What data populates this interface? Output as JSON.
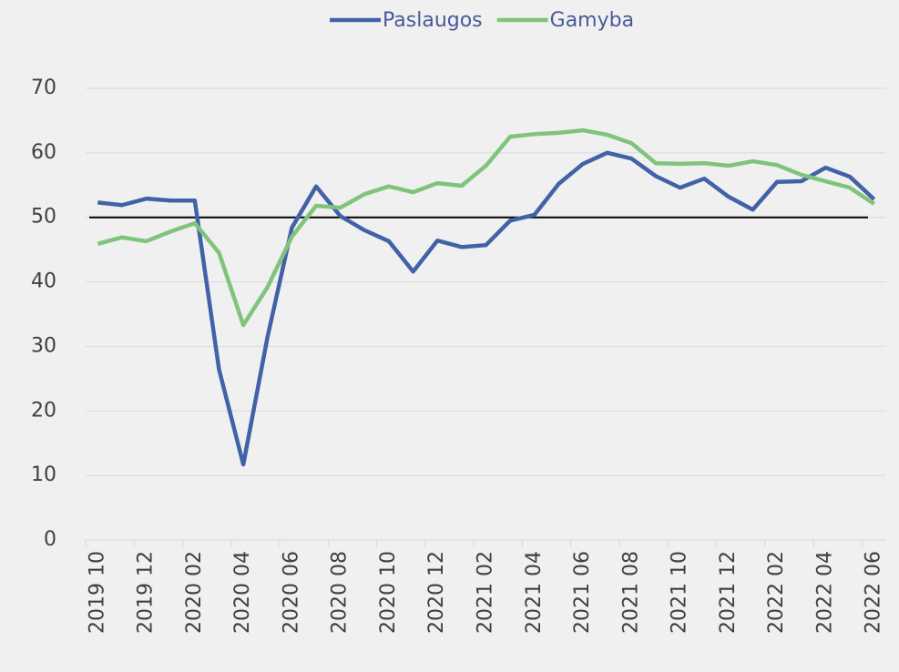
{
  "chart_data": {
    "type": "line",
    "categories": [
      "2019 10",
      null,
      "2019 12",
      null,
      "2020 02",
      null,
      "2020 04",
      null,
      "2020 06",
      null,
      "2020 08",
      null,
      "2020 10",
      null,
      "2020 12",
      null,
      "2021 02",
      null,
      "2021 04",
      null,
      "2021 06",
      null,
      "2021 08",
      null,
      "2021 10",
      null,
      "2021 12",
      null,
      "2022 02",
      null,
      "2022 04",
      null,
      "2022 06"
    ],
    "series": [
      {
        "name": "Paslaugos",
        "color": "#4262a8",
        "values": [
          52.3,
          51.9,
          52.9,
          52.6,
          52.6,
          26.4,
          11.7,
          31.5,
          48.4,
          54.8,
          50.2,
          48.0,
          46.3,
          41.6,
          46.4,
          45.4,
          45.7,
          49.5,
          50.4,
          55.2,
          58.3,
          60.0,
          59.1,
          56.4,
          54.6,
          56.0,
          53.2,
          51.2,
          55.5,
          55.6,
          57.7,
          56.3,
          52.8
        ]
      },
      {
        "name": "Gamyba",
        "color": "#80c47c",
        "values": [
          45.9,
          46.9,
          46.3,
          47.8,
          49.1,
          44.5,
          33.3,
          39.2,
          47.0,
          51.8,
          51.5,
          53.6,
          54.8,
          53.9,
          55.3,
          54.9,
          58.0,
          62.5,
          62.9,
          63.1,
          63.5,
          62.8,
          61.5,
          58.4,
          58.3,
          58.4,
          58.0,
          58.7,
          58.1,
          56.6,
          55.6,
          54.6,
          52.1
        ]
      }
    ],
    "ylim": [
      0,
      70
    ],
    "yticks": [
      0,
      10,
      20,
      30,
      40,
      50,
      60,
      70
    ],
    "grid": true,
    "reference_line": 50,
    "legend": "top"
  }
}
